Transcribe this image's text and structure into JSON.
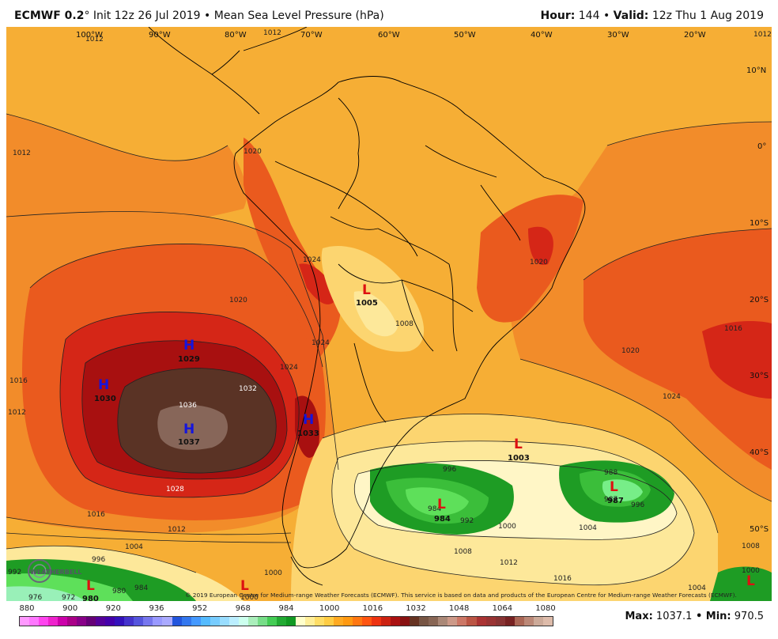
{
  "header": {
    "model": "ECMWF 0.2",
    "init": "° Init 12z 26 Jul 2019 • Mean Sea Level Pressure (hPa)",
    "hour_label": "Hour:",
    "hour_value": " 144 • ",
    "valid_label": "Valid:",
    "valid_value": " 12z Thu 1 Aug 2019"
  },
  "map": {
    "longitudes": [
      "100°W",
      "90°W",
      "80°W",
      "70°W",
      "60°W",
      "50°W",
      "40°W",
      "30°W",
      "20°W"
    ],
    "latitudes": [
      "10°N",
      "0°",
      "10°S",
      "20°S",
      "30°S",
      "40°S",
      "50°S"
    ],
    "isobar_labels": [
      "1012",
      "1012",
      "1012",
      "1012",
      "1016",
      "1012",
      "1020",
      "1024",
      "1032",
      "1036",
      "1028",
      "1016",
      "1012",
      "1004",
      "996",
      "1024",
      "1020",
      "1008",
      "1024",
      "1020",
      "1016",
      "1020",
      "1024",
      "996",
      "984",
      "992",
      "1000",
      "988",
      "987",
      "996",
      "1004",
      "1008",
      "1012",
      "1016",
      "1000",
      "1008",
      "1000",
      "1004",
      "992",
      "980",
      "984",
      "976",
      "972",
      "1000"
    ],
    "highs": [
      {
        "symbol": "H",
        "value": "1029"
      },
      {
        "symbol": "H",
        "value": "1030"
      },
      {
        "symbol": "H",
        "value": "1037"
      },
      {
        "symbol": "H",
        "value": "1033"
      }
    ],
    "lows": [
      {
        "symbol": "L",
        "value": "1005"
      },
      {
        "symbol": "L",
        "value": "1003"
      },
      {
        "symbol": "L",
        "value": "984"
      },
      {
        "symbol": "L",
        "value": "987"
      },
      {
        "symbol": "L",
        "value": "980"
      },
      {
        "symbol": "L",
        "value": ""
      },
      {
        "symbol": "L",
        "value": ""
      }
    ],
    "logo_text": "WEATHERBELL",
    "copyright": "© 2019 European Centre for Medium-range Weather Forecasts (ECMWF). This service is based on data and products of the European Centre for Medium-range Weather Forecasts (ECMWF)."
  },
  "colorbar": {
    "labels": [
      "880",
      "900",
      "920",
      "936",
      "952",
      "968",
      "984",
      "1000",
      "1016",
      "1032",
      "1048",
      "1064",
      "1080"
    ],
    "colors": [
      "#ff99ff",
      "#ff77ff",
      "#ff44ee",
      "#ee22cc",
      "#cc00aa",
      "#aa0088",
      "#880088",
      "#660077",
      "#550099",
      "#4400aa",
      "#3311bb",
      "#4433cc",
      "#5555dd",
      "#7777ee",
      "#9999ff",
      "#aaaaff",
      "#2255dd",
      "#3377ee",
      "#4499ff",
      "#55bbff",
      "#77ccff",
      "#99ddff",
      "#bbeeff",
      "#ccffee",
      "#aaeebb",
      "#77dd88",
      "#44cc55",
      "#22aa33",
      "#119922",
      "#ffffcc",
      "#ffee99",
      "#ffdd66",
      "#ffcc44",
      "#ffaa22",
      "#ff9911",
      "#ff7711",
      "#ff5511",
      "#ee3311",
      "#cc2211",
      "#aa1111",
      "#881111",
      "#663322",
      "#775544",
      "#886655",
      "#aa8877",
      "#cc9988",
      "#cc7766",
      "#bb5544",
      "#aa3333",
      "#993333",
      "#883333",
      "#772222",
      "#aa6655",
      "#bb8877",
      "#ccaa99",
      "#ddbbaa"
    ],
    "max_label": "Max:",
    "max_value": " 1037.1",
    "min_label": " • Min:",
    "min_value": " 970.5"
  }
}
